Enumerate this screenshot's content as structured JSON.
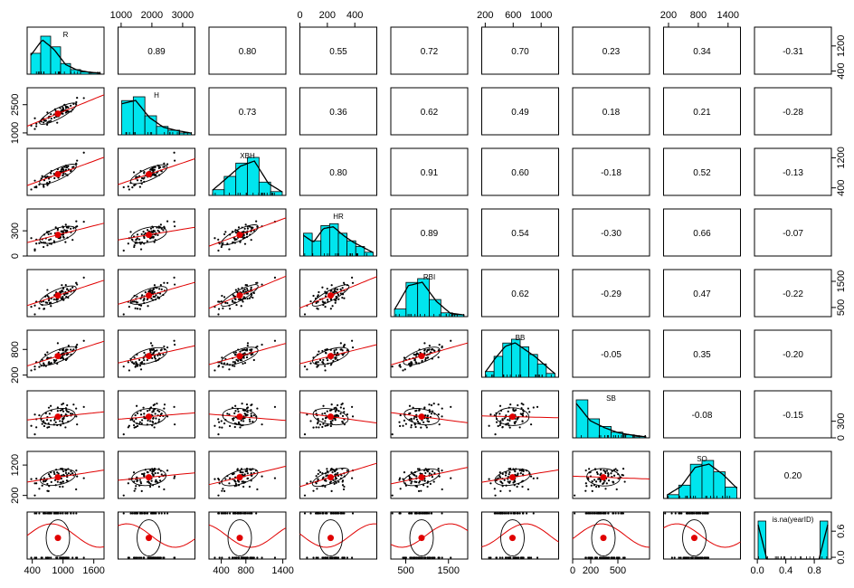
{
  "chart_data": {
    "type": "scatter",
    "subtype": "pairs-panels-matrix",
    "variables": [
      "R",
      "H",
      "XBH",
      "HR",
      "RBI",
      "BB",
      "SB",
      "SO",
      "is.na(yearID)"
    ],
    "ranges": [
      [
        300,
        1800
      ],
      [
        900,
        3400
      ],
      [
        200,
        1450
      ],
      [
        0,
        560
      ],
      [
        150,
        1950
      ],
      [
        150,
        1250
      ],
      [
        0,
        850
      ],
      [
        100,
        1650
      ],
      [
        -0.04,
        1.04
      ]
    ],
    "centers": [
      950,
      1600,
      870,
      220,
      960,
      650,
      140,
      780,
      0.5
    ],
    "correlations": [
      [
        null,
        0.89,
        0.8,
        0.55,
        0.72,
        0.7,
        0.23,
        0.34,
        -0.31
      ],
      [
        null,
        null,
        0.73,
        0.36,
        0.62,
        0.49,
        0.18,
        0.21,
        -0.28
      ],
      [
        null,
        null,
        null,
        0.8,
        0.91,
        0.6,
        -0.18,
        0.52,
        -0.13
      ],
      [
        null,
        null,
        null,
        null,
        0.89,
        0.54,
        -0.3,
        0.66,
        -0.07
      ],
      [
        null,
        null,
        null,
        null,
        null,
        0.62,
        -0.29,
        0.47,
        -0.22
      ],
      [
        null,
        null,
        null,
        null,
        null,
        null,
        -0.05,
        0.35,
        -0.2
      ],
      [
        null,
        null,
        null,
        null,
        null,
        null,
        null,
        -0.08,
        -0.15
      ],
      [
        null,
        null,
        null,
        null,
        null,
        null,
        null,
        null,
        0.2
      ]
    ],
    "correlation_labels": [
      [
        "0.89",
        "0.80",
        "0.55",
        "0.72",
        "0.70",
        "0.23",
        "0.34",
        "-0.31"
      ],
      [
        "0.73",
        "0.36",
        "0.62",
        "0.49",
        "0.18",
        "0.21",
        "-0.28"
      ],
      [
        "0.80",
        "0.91",
        "0.60",
        "-0.18",
        "0.52",
        "-0.13"
      ],
      [
        "0.89",
        "0.54",
        "-0.30",
        "0.66",
        "-0.07"
      ],
      [
        "0.62",
        "-0.29",
        "0.47",
        "-0.22"
      ],
      [
        "-0.05",
        "0.35",
        "-0.20"
      ],
      [
        "-0.08",
        "-0.15"
      ],
      [
        "0.20"
      ]
    ],
    "histograms": [
      [
        0.55,
        1.0,
        0.72,
        0.28,
        0.12,
        0.06,
        0.03
      ],
      [
        0.9,
        1.0,
        0.5,
        0.22,
        0.12,
        0.05
      ],
      [
        0.15,
        0.5,
        0.85,
        1.0,
        0.35,
        0.1
      ],
      [
        0.6,
        0.4,
        0.8,
        0.85,
        0.6,
        0.4,
        0.25,
        0.1
      ],
      [
        0.2,
        0.9,
        1.0,
        0.45,
        0.1,
        0.05
      ],
      [
        0.15,
        0.55,
        0.9,
        1.0,
        0.8,
        0.6,
        0.35,
        0.1
      ],
      [
        1.0,
        0.5,
        0.3,
        0.15,
        0.08,
        0.03
      ],
      [
        0.1,
        0.35,
        0.9,
        1.0,
        0.7,
        0.3
      ],
      [
        1.0,
        0,
        0,
        0,
        0,
        0,
        0,
        0,
        1.0
      ]
    ],
    "axis_ticks": {
      "top": [
        {
          "col": 1,
          "values": [
            1000,
            2000,
            3000
          ],
          "labels": [
            "1000",
            "2000",
            "3000"
          ]
        },
        {
          "col": 3,
          "values": [
            0,
            200,
            400
          ],
          "labels": [
            "0",
            "200",
            "400"
          ]
        },
        {
          "col": 5,
          "values": [
            200,
            600,
            1000
          ],
          "labels": [
            "200",
            "600",
            "1000"
          ]
        },
        {
          "col": 7,
          "values": [
            200,
            800,
            1400
          ],
          "labels": [
            "200",
            "800",
            "1400"
          ]
        }
      ],
      "bottom": [
        {
          "col": 0,
          "values": [
            400,
            1000,
            1600
          ],
          "labels": [
            "400",
            "1000",
            "1600"
          ]
        },
        {
          "col": 2,
          "values": [
            400,
            800,
            1400
          ],
          "labels": [
            "400",
            "800",
            "1400"
          ]
        },
        {
          "col": 4,
          "values": [
            500,
            1500
          ],
          "labels": [
            "500",
            "1500"
          ]
        },
        {
          "col": 6,
          "values": [
            0,
            200,
            500
          ],
          "labels": [
            "0",
            "200",
            "500"
          ]
        },
        {
          "col": 8,
          "values": [
            0.0,
            0.4,
            0.8
          ],
          "labels": [
            "0.0",
            "0.4",
            "0.8"
          ]
        }
      ],
      "left": [
        {
          "row": 1,
          "values": [
            1000,
            2500
          ],
          "labels": [
            "1000",
            "2500"
          ]
        },
        {
          "row": 3,
          "values": [
            0,
            300
          ],
          "labels": [
            "0",
            "300"
          ]
        },
        {
          "row": 5,
          "values": [
            200,
            800
          ],
          "labels": [
            "200",
            "800"
          ]
        },
        {
          "row": 7,
          "values": [
            200,
            1200
          ],
          "labels": [
            "200",
            "1200"
          ]
        }
      ],
      "right": [
        {
          "row": 0,
          "values": [
            400,
            1200
          ],
          "labels": [
            "400",
            "1200"
          ]
        },
        {
          "row": 2,
          "values": [
            400,
            1200
          ],
          "labels": [
            "400",
            "1200"
          ]
        },
        {
          "row": 4,
          "values": [
            500,
            1500
          ],
          "labels": [
            "500",
            "1500"
          ]
        },
        {
          "row": 6,
          "values": [
            0,
            300
          ],
          "labels": [
            "0",
            "300"
          ]
        },
        {
          "row": 8,
          "values": [
            0.0,
            0.6
          ],
          "labels": [
            "0.0",
            "0.6"
          ]
        }
      ]
    },
    "colors": {
      "histogram_fill": "#00e5ee",
      "smoother": "#e00000",
      "points": "#000000",
      "center": "#e00000"
    },
    "grid": false
  }
}
